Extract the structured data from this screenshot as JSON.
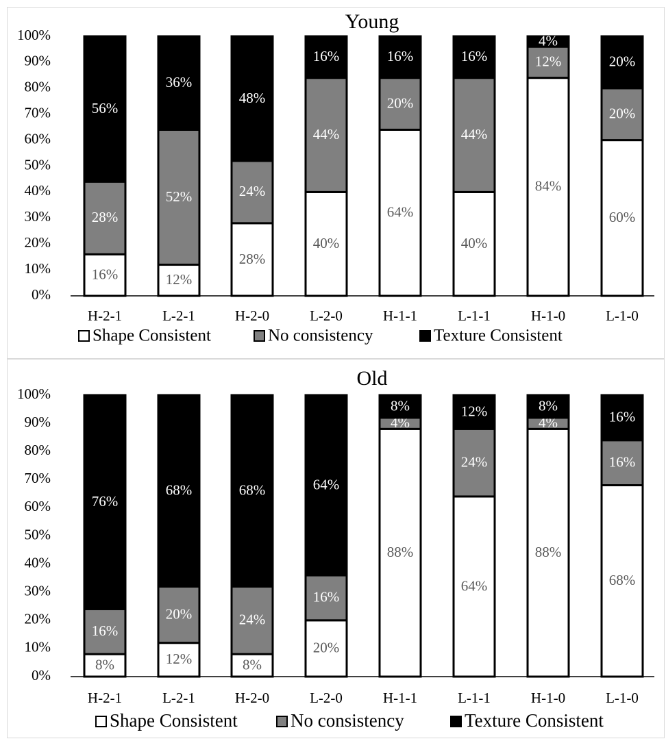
{
  "chart_data": [
    {
      "type": "bar",
      "stacked": true,
      "percent_stacked": true,
      "title": "Young",
      "categories": [
        "H-2-1",
        "L-2-1",
        "H-2-0",
        "L-2-0",
        "H-1-1",
        "L-1-1",
        "H-1-0",
        "L-1-0"
      ],
      "series": [
        {
          "name": "Shape Consistent",
          "values": [
            16,
            12,
            28,
            40,
            64,
            40,
            84,
            60
          ],
          "labels": [
            "16%",
            "12%",
            "28%",
            "40%",
            "64%",
            "40%",
            "84%",
            "60%"
          ]
        },
        {
          "name": "No consistency",
          "values": [
            28,
            52,
            24,
            44,
            20,
            44,
            12,
            20
          ],
          "labels": [
            "28%",
            "52%",
            "24%",
            "44%",
            "20%",
            "44%",
            "12%",
            "20%"
          ]
        },
        {
          "name": "Texture Consistent",
          "values": [
            56,
            36,
            48,
            16,
            16,
            16,
            4,
            20
          ],
          "labels": [
            "56%",
            "36%",
            "48%",
            "16%",
            "16%",
            "16%",
            "4%",
            "20%"
          ]
        }
      ],
      "yticks": [
        "0%",
        "10%",
        "20%",
        "30%",
        "40%",
        "50%",
        "60%",
        "70%",
        "80%",
        "90%",
        "100%"
      ],
      "ylim": [
        0,
        100
      ],
      "grid": false,
      "legend_position": "bottom"
    },
    {
      "type": "bar",
      "stacked": true,
      "percent_stacked": true,
      "title": "Old",
      "categories": [
        "H-2-1",
        "L-2-1",
        "H-2-0",
        "L-2-0",
        "H-1-1",
        "L-1-1",
        "H-1-0",
        "L-1-0"
      ],
      "series": [
        {
          "name": "Shape Consistent",
          "values": [
            8,
            12,
            8,
            20,
            88,
            64,
            88,
            68
          ],
          "labels": [
            "8%",
            "12%",
            "8%",
            "20%",
            "88%",
            "64%",
            "88%",
            "68%"
          ]
        },
        {
          "name": "No consistency",
          "values": [
            16,
            20,
            24,
            16,
            4,
            24,
            4,
            16
          ],
          "labels": [
            "16%",
            "20%",
            "24%",
            "16%",
            "4%",
            "24%",
            "4%",
            "16%"
          ]
        },
        {
          "name": "Texture Consistent",
          "values": [
            76,
            68,
            68,
            64,
            8,
            12,
            8,
            16
          ],
          "labels": [
            "76%",
            "68%",
            "68%",
            "64%",
            "8%",
            "12%",
            "8%",
            "16%"
          ]
        }
      ],
      "yticks": [
        "0%",
        "10%",
        "20%",
        "30%",
        "40%",
        "50%",
        "60%",
        "70%",
        "80%",
        "90%",
        "100%"
      ],
      "ylim": [
        0,
        100
      ],
      "grid": false,
      "legend_position": "bottom"
    }
  ],
  "colors": {
    "shape": "#ffffff",
    "none": "#808080",
    "texture": "#000000",
    "bar_outline": "#000000",
    "label_on_white": "#595959",
    "label_on_gray": "#ffffff",
    "label_on_black": "#ffffff",
    "panel_border": "#d9d9d9"
  }
}
